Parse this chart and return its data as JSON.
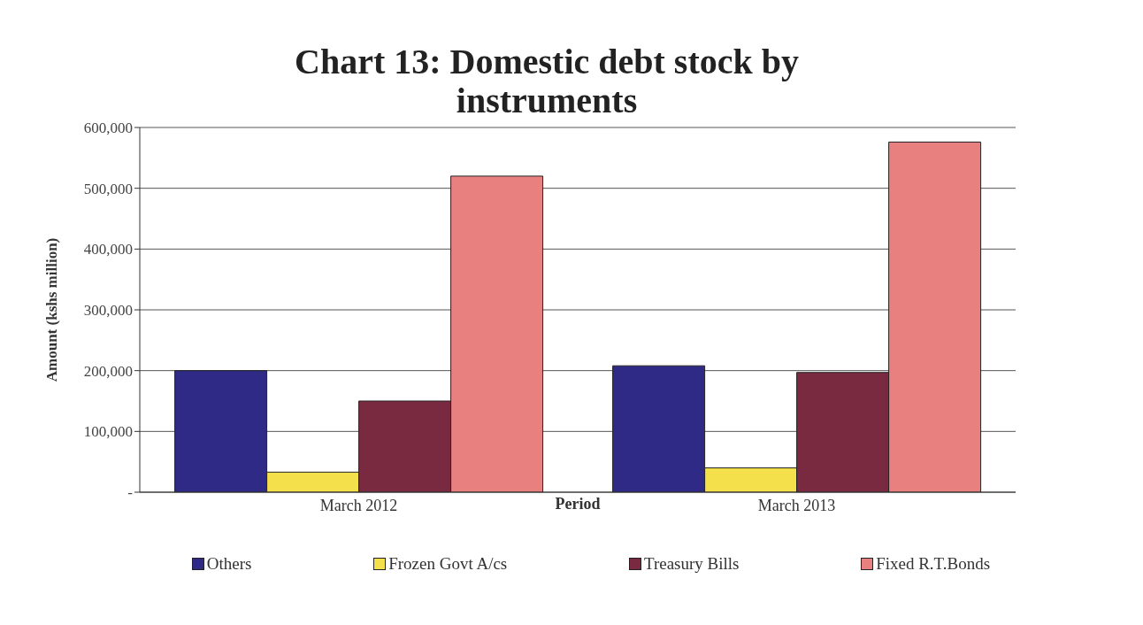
{
  "chart_data": {
    "type": "bar",
    "title": "Chart 13: Domestic debt stock by instruments",
    "xlabel": "Period",
    "ylabel": "Amount (kshs million)",
    "categories": [
      "March 2012",
      "March 2013"
    ],
    "series": [
      {
        "name": "Others",
        "color": "#2e2a86",
        "values": [
          200000,
          208000
        ]
      },
      {
        "name": "Frozen Govt A/cs",
        "color": "#f4e04a",
        "values": [
          33000,
          40000
        ]
      },
      {
        "name": "Treasury Bills",
        "color": "#7a2a40",
        "values": [
          150000,
          197000
        ]
      },
      {
        "name": "Fixed R.T.Bonds",
        "color": "#e88080",
        "values": [
          520000,
          576000
        ]
      }
    ],
    "ylim": [
      0,
      600000
    ],
    "yticks": [
      {
        "value": 0,
        "label": "-"
      },
      {
        "value": 100000,
        "label": "100,000"
      },
      {
        "value": 200000,
        "label": "200,000"
      },
      {
        "value": 300000,
        "label": "300,000"
      },
      {
        "value": 400000,
        "label": "400,000"
      },
      {
        "value": 500000,
        "label": "500,000"
      },
      {
        "value": 600000,
        "label": "600,000"
      }
    ],
    "grid": "y",
    "legend": "bottom"
  }
}
